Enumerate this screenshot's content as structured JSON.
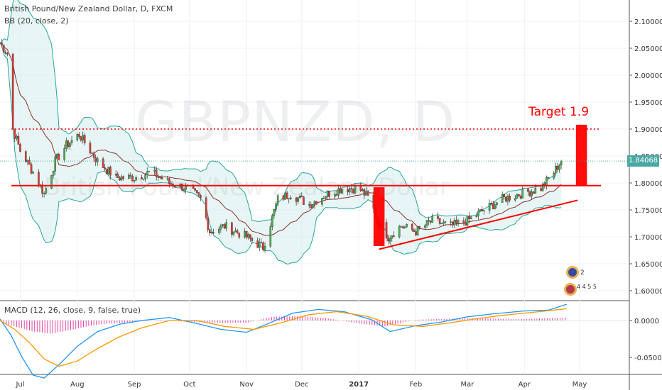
{
  "header": {
    "title": "British Pound/New Zealand Dollar, D, FXCM",
    "indicator": "BB (20, close, 2)",
    "macd_label": "MACD (12, 26, close, 9, false, true)"
  },
  "watermark": {
    "symbol": "GBPNZD, D",
    "name": "British Pound/New Zealand Dollar"
  },
  "annotations": {
    "target_label": "Target 1.9",
    "current_price": "1.84068"
  },
  "ideas_badge": {
    "count_top": "2",
    "counts_bottom": "4 4 5 5"
  },
  "colors": {
    "candle_up": "#4caf50",
    "candle_down": "#e53935",
    "band_line": "#29a39a",
    "band_fill": "#d4efec",
    "basis": "#8e2e2e",
    "macd_line": "#2196f3",
    "signal_line": "#ff9800",
    "histogram": "#e040a0",
    "annotation": "#ff0000"
  },
  "chart_data": [
    {
      "type": "candlestick",
      "title": "British Pound/New Zealand Dollar, D, FXCM",
      "x_ticks": [
        "Jul",
        "Aug",
        "Sep",
        "Oct",
        "Nov",
        "Dec",
        "2017",
        "Feb",
        "Mar",
        "Apr",
        "May"
      ],
      "y_ticks": [
        "1.60000",
        "1.65000",
        "1.70000",
        "1.75000",
        "1.80000",
        "1.85000",
        "1.90000",
        "1.95000",
        "2.00000",
        "2.05000",
        "2.10000"
      ],
      "ylim": [
        1.585,
        2.118
      ],
      "price_path": {
        "dates": [
          "2016-06-20",
          "2016-06-24",
          "2016-06-27",
          "2016-07-01",
          "2016-07-08",
          "2016-07-14",
          "2016-07-20",
          "2016-07-26",
          "2016-08-02",
          "2016-08-12",
          "2016-08-22",
          "2016-09-01",
          "2016-09-10",
          "2016-09-20",
          "2016-09-30",
          "2016-10-07",
          "2016-10-12",
          "2016-10-20",
          "2016-11-01",
          "2016-11-10",
          "2016-11-18",
          "2016-11-25",
          "2016-12-05",
          "2016-12-15",
          "2016-12-23",
          "2017-01-01",
          "2017-01-07",
          "2017-01-11",
          "2017-01-17",
          "2017-01-24",
          "2017-02-01",
          "2017-02-10",
          "2017-02-20",
          "2017-03-01",
          "2017-03-10",
          "2017-03-20",
          "2017-03-30",
          "2017-04-10",
          "2017-04-17",
          "2017-04-21"
        ],
        "closes": [
          2.06,
          2.04,
          1.9,
          1.86,
          1.82,
          1.78,
          1.84,
          1.87,
          1.89,
          1.84,
          1.81,
          1.81,
          1.82,
          1.8,
          1.79,
          1.77,
          1.71,
          1.72,
          1.7,
          1.68,
          1.77,
          1.78,
          1.76,
          1.78,
          1.79,
          1.79,
          1.77,
          1.73,
          1.7,
          1.72,
          1.71,
          1.73,
          1.72,
          1.73,
          1.75,
          1.77,
          1.78,
          1.79,
          1.82,
          1.841
        ]
      },
      "bollinger": {
        "period": 20,
        "source": "close",
        "mult": 2
      },
      "horizontal_lines": [
        {
          "y": 1.795,
          "style": "solid",
          "color": "#ff0000"
        },
        {
          "y": 1.9,
          "style": "dotted",
          "color": "#ff0000"
        }
      ],
      "trendline": {
        "from": [
          "2017-01-12",
          1.677
        ],
        "to": [
          "2017-04-30",
          1.768
        ],
        "color": "#ff0000"
      },
      "rectangles": [
        {
          "x0": "2017-01-09",
          "x1": "2017-01-15",
          "y0": 1.683,
          "y1": 1.792,
          "color": "#ff0000"
        },
        {
          "x0": "2017-04-29",
          "x1": "2017-05-05",
          "y0": 1.795,
          "y1": 1.908,
          "color": "#ff0000"
        }
      ],
      "last_price": 1.84068
    },
    {
      "type": "line",
      "title": "MACD (12, 26, close, 9, false, true)",
      "x_ticks": [
        "Jul",
        "Aug",
        "Sep",
        "Oct",
        "Nov",
        "Dec",
        "2017",
        "Feb",
        "Mar",
        "Apr",
        "May"
      ],
      "y_ticks": [
        "-0.0500",
        "0.0000"
      ],
      "ylim": [
        -0.085,
        0.03
      ],
      "series": [
        {
          "name": "MACD",
          "x": [
            "2016-06-20",
            "2016-06-26",
            "2016-07-02",
            "2016-07-08",
            "2016-07-14",
            "2016-07-22",
            "2016-08-01",
            "2016-08-12",
            "2016-08-24",
            "2016-09-05",
            "2016-09-20",
            "2016-10-05",
            "2016-10-18",
            "2016-11-01",
            "2016-11-12",
            "2016-11-26",
            "2016-12-10",
            "2016-12-24",
            "2017-01-08",
            "2017-01-18",
            "2017-02-01",
            "2017-02-15",
            "2017-03-01",
            "2017-03-15",
            "2017-04-01",
            "2017-04-14",
            "2017-04-24"
          ],
          "values": [
            0.002,
            -0.02,
            -0.05,
            -0.074,
            -0.078,
            -0.06,
            -0.035,
            -0.015,
            -0.005,
            0.0,
            0.004,
            -0.004,
            -0.012,
            -0.016,
            -0.005,
            0.01,
            0.015,
            0.012,
            0.001,
            -0.015,
            -0.007,
            -0.002,
            0.005,
            0.009,
            0.013,
            0.014,
            0.022
          ]
        },
        {
          "name": "Signal",
          "x": [
            "2016-06-20",
            "2016-06-28",
            "2016-07-06",
            "2016-07-14",
            "2016-07-22",
            "2016-08-01",
            "2016-08-12",
            "2016-08-24",
            "2016-09-05",
            "2016-09-20",
            "2016-10-05",
            "2016-10-20",
            "2016-11-05",
            "2016-11-20",
            "2016-12-05",
            "2016-12-20",
            "2017-01-05",
            "2017-01-20",
            "2017-02-05",
            "2017-02-20",
            "2017-03-05",
            "2017-03-20",
            "2017-04-05",
            "2017-04-24"
          ],
          "values": [
            0.0,
            -0.012,
            -0.03,
            -0.052,
            -0.062,
            -0.055,
            -0.038,
            -0.022,
            -0.01,
            0.0,
            0.0,
            -0.008,
            -0.012,
            -0.003,
            0.008,
            0.012,
            0.006,
            -0.006,
            -0.008,
            -0.003,
            0.002,
            0.007,
            0.011,
            0.016
          ]
        }
      ],
      "histogram": {
        "x": [
          "2016-06-22",
          "2016-06-28",
          "2016-07-04",
          "2016-07-08",
          "2016-07-12",
          "2016-07-18",
          "2016-07-24",
          "2016-07-30",
          "2016-08-06",
          "2016-08-14",
          "2016-09-01",
          "2016-09-15",
          "2016-10-01",
          "2016-10-15",
          "2016-11-01",
          "2016-11-15",
          "2016-12-01",
          "2016-12-15",
          "2017-01-01",
          "2017-01-08",
          "2017-01-15",
          "2017-02-01",
          "2017-03-01",
          "2017-04-01",
          "2017-04-24"
        ],
        "values": [
          -0.004,
          -0.008,
          -0.012,
          -0.015,
          -0.016,
          -0.018,
          -0.015,
          -0.012,
          -0.008,
          -0.005,
          -0.002,
          0.001,
          -0.002,
          -0.003,
          -0.003,
          0.005,
          0.006,
          0.003,
          -0.004,
          -0.006,
          -0.008,
          0.001,
          0.003,
          0.002,
          0.004
        ]
      }
    }
  ]
}
